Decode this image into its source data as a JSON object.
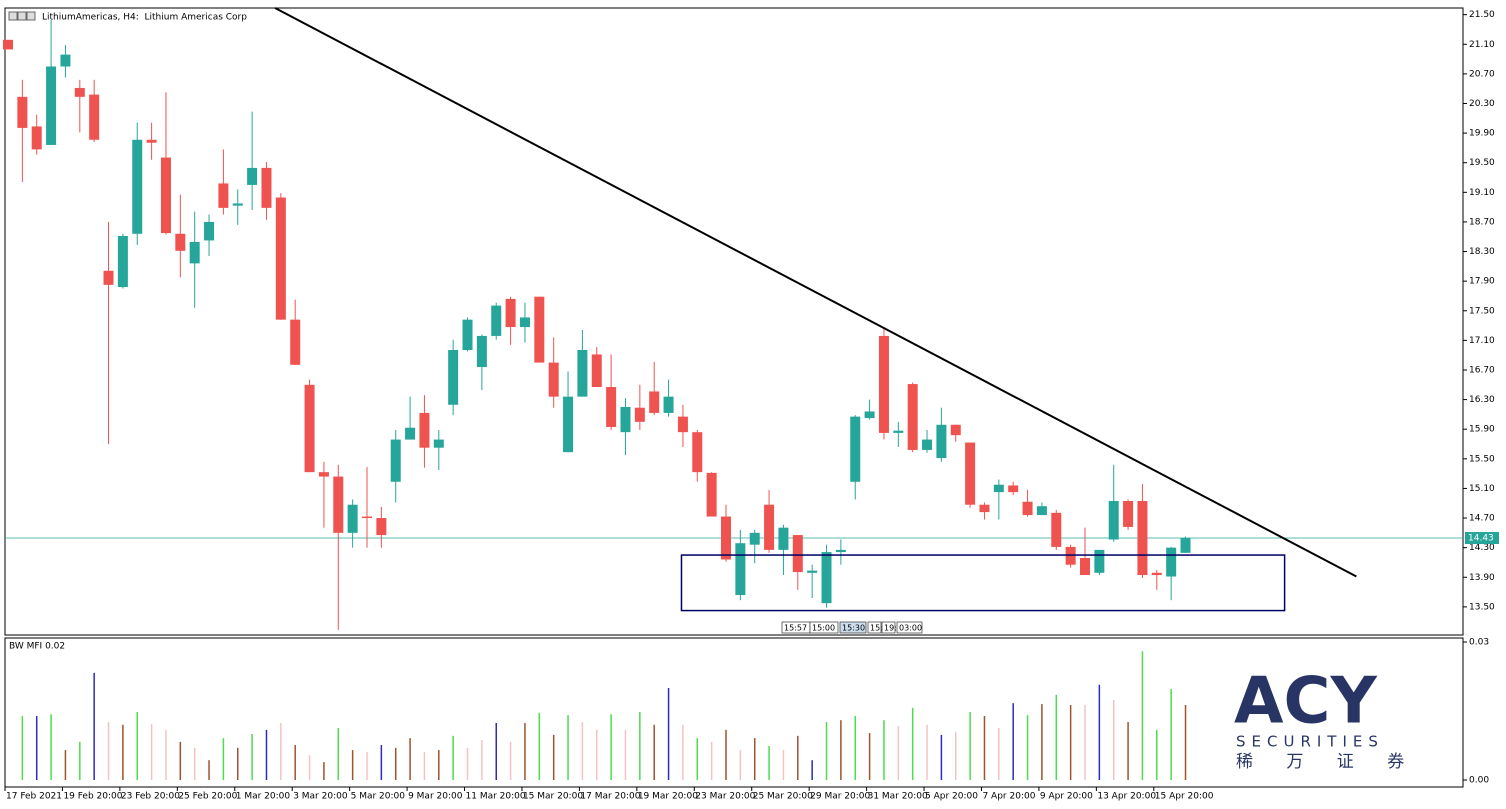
{
  "header": {
    "title": "LithiumAmericas, H4:  Lithium Americas Corp"
  },
  "chart_data": [
    {
      "type": "candlestick",
      "categories": [
        "17 Feb 2021",
        null,
        null,
        null,
        "19 Feb 20:00",
        null,
        null,
        null,
        "23 Feb 20:00",
        null,
        null,
        null,
        "25 Feb 20:00",
        null,
        null,
        null,
        "1 Mar 20:00",
        null,
        null,
        null,
        "3 Mar 20:00",
        null,
        null,
        null,
        "5 Mar 20:00",
        null,
        null,
        null,
        "9 Mar 20:00",
        null,
        null,
        null,
        "11 Mar 20:00",
        null,
        null,
        null,
        "15 Mar 20:00",
        null,
        null,
        null,
        "17 Mar 20:00",
        null,
        null,
        null,
        "19 Mar 20:00",
        null,
        null,
        null,
        "23 Mar 20:00",
        null,
        null,
        null,
        "25 Mar 20:00",
        null,
        null,
        null,
        "29 Mar 20:00",
        null,
        null,
        null,
        "31 Mar 20:00",
        null,
        null,
        null,
        "5 Apr 20:00",
        null,
        null,
        null,
        "7 Apr 20:00",
        null,
        null,
        null,
        "9 Apr 20:00",
        null,
        null,
        null,
        "13 Apr 20:00",
        null,
        null,
        null,
        "15 Apr 20:00",
        null,
        null
      ],
      "open": [
        21.16,
        20.39,
        19.99,
        19.74,
        20.8,
        20.51,
        20.42,
        18.04,
        17.82,
        18.54,
        19.81,
        19.57,
        18.54,
        18.14,
        18.45,
        19.22,
        18.92,
        19.2,
        19.43,
        19.03,
        17.38,
        16.5,
        15.32,
        15.26,
        14.5,
        14.72,
        14.7,
        15.19,
        15.76,
        16.12,
        15.65,
        16.23,
        16.97,
        16.74,
        17.16,
        17.66,
        17.28,
        17.69,
        16.8,
        15.59,
        16.34,
        16.91,
        16.47,
        15.86,
        16.19,
        16.41,
        16.12,
        16.07,
        15.86,
        15.31,
        14.72,
        13.66,
        14.34,
        14.88,
        14.27,
        14.47,
        13.96,
        13.55,
        14.24,
        15.19,
        16.05,
        17.16,
        15.85,
        16.51,
        15.62,
        15.51,
        15.96,
        15.72,
        14.88,
        15.05,
        15.14,
        14.92,
        14.74,
        14.77,
        14.31,
        14.16,
        13.96,
        14.41,
        14.93,
        14.93,
        13.96,
        13.91,
        14.23
      ],
      "high": [
        21.16,
        20.62,
        20.15,
        21.43,
        21.09,
        20.62,
        20.62,
        18.7,
        18.54,
        20.04,
        20.04,
        20.45,
        19.07,
        18.84,
        18.8,
        19.68,
        19.14,
        20.19,
        19.51,
        19.09,
        17.65,
        16.57,
        15.46,
        15.42,
        14.95,
        15.39,
        14.85,
        15.89,
        16.34,
        16.36,
        15.89,
        17.11,
        17.41,
        17.18,
        17.61,
        17.69,
        17.61,
        17.69,
        17.14,
        16.68,
        17.24,
        17.01,
        16.91,
        16.32,
        16.5,
        16.81,
        16.57,
        16.23,
        15.89,
        15.32,
        14.88,
        14.54,
        14.54,
        15.08,
        14.61,
        14.47,
        14.07,
        14.34,
        14.41,
        16.09,
        16.3,
        17.28,
        16.0,
        16.53,
        15.89,
        16.19,
        15.96,
        15.72,
        14.91,
        15.22,
        15.19,
        15.08,
        14.91,
        14.81,
        14.34,
        14.57,
        14.27,
        15.42,
        14.95,
        15.16,
        14.0,
        14.31,
        14.45
      ],
      "low": [
        21.03,
        19.24,
        19.61,
        19.74,
        20.65,
        19.91,
        19.78,
        15.7,
        17.8,
        18.39,
        19.54,
        18.53,
        17.95,
        17.54,
        18.24,
        18.8,
        18.66,
        18.86,
        18.73,
        17.38,
        16.77,
        15.32,
        14.57,
        13.19,
        14.3,
        14.3,
        14.3,
        14.91,
        15.76,
        15.38,
        15.35,
        16.09,
        16.95,
        16.43,
        17.11,
        17.04,
        17.07,
        16.8,
        16.19,
        15.59,
        16.34,
        16.47,
        15.89,
        15.55,
        15.89,
        16.09,
        16.07,
        15.66,
        15.19,
        14.72,
        14.11,
        13.59,
        14.09,
        14.23,
        13.93,
        13.73,
        13.62,
        13.49,
        14.07,
        14.95,
        16.03,
        15.76,
        15.66,
        15.59,
        15.58,
        15.46,
        15.73,
        14.84,
        14.68,
        14.68,
        15.01,
        14.72,
        14.74,
        14.27,
        14.03,
        13.93,
        13.93,
        14.38,
        14.54,
        13.89,
        13.73,
        13.59,
        14.23
      ],
      "close": [
        21.03,
        19.97,
        19.68,
        20.8,
        20.96,
        20.39,
        19.81,
        17.85,
        18.51,
        19.81,
        19.77,
        18.55,
        18.31,
        18.43,
        18.7,
        18.89,
        18.95,
        19.43,
        18.89,
        17.38,
        16.77,
        15.32,
        15.26,
        14.5,
        14.88,
        14.7,
        14.47,
        15.76,
        15.92,
        15.65,
        15.76,
        16.97,
        17.38,
        17.16,
        17.57,
        17.28,
        17.41,
        16.8,
        16.34,
        16.34,
        16.97,
        16.47,
        15.93,
        16.2,
        16.0,
        16.12,
        16.34,
        15.86,
        15.32,
        14.72,
        14.14,
        14.36,
        14.5,
        14.27,
        14.57,
        13.97,
        13.99,
        14.24,
        14.27,
        16.07,
        16.14,
        15.85,
        15.88,
        15.62,
        15.76,
        15.96,
        15.82,
        14.88,
        14.78,
        15.15,
        15.05,
        14.74,
        14.86,
        14.31,
        14.07,
        13.93,
        14.27,
        14.93,
        14.58,
        13.93,
        13.93,
        14.3,
        14.43
      ],
      "up_color": "#26a69a",
      "down_color": "#ef5350",
      "ylim": [
        13.12,
        21.59
      ],
      "yticks": [
        {
          "value": 21.5,
          "label": "21.50"
        },
        {
          "value": 21.1,
          "label": "21.10"
        },
        {
          "value": 20.7,
          "label": "20.70"
        },
        {
          "value": 20.3,
          "label": "20.30"
        },
        {
          "value": 19.9,
          "label": "19.90"
        },
        {
          "value": 19.5,
          "label": "19.50"
        },
        {
          "value": 19.1,
          "label": "19.10"
        },
        {
          "value": 18.7,
          "label": "18.70"
        },
        {
          "value": 18.3,
          "label": "18.30"
        },
        {
          "value": 17.9,
          "label": "17.90"
        },
        {
          "value": 17.5,
          "label": "17.50"
        },
        {
          "value": 17.1,
          "label": "17.10"
        },
        {
          "value": 16.7,
          "label": "16.70"
        },
        {
          "value": 16.3,
          "label": "16.30"
        },
        {
          "value": 15.9,
          "label": "15.90"
        },
        {
          "value": 15.5,
          "label": "15.50"
        },
        {
          "value": 15.1,
          "label": "15.10"
        },
        {
          "value": 14.7,
          "label": "14.70"
        },
        {
          "value": 14.3,
          "label": "14.30"
        },
        {
          "value": 13.9,
          "label": "13.90"
        },
        {
          "value": 13.5,
          "label": "13.50"
        }
      ],
      "last_price": 14.43,
      "last_price_color": "#26a69a",
      "trendline": {
        "x": [
          18.6,
          93.9
        ],
        "y": [
          21.59,
          13.91
        ],
        "color": "#000000"
      },
      "rectangle": {
        "x": [
          46.9,
          88.9
        ],
        "y": [
          14.2,
          13.45
        ],
        "color": "#000066"
      },
      "time_tags": [
        "15:57",
        "15:00",
        "15:30",
        "15:",
        "19:",
        "03:00"
      ]
    },
    {
      "type": "bar",
      "title": "BW MFI 0.02",
      "values": [
        null,
        0.0139,
        0.0139,
        0.0143,
        0.0065,
        0.0083,
        0.0233,
        0.0126,
        0.012,
        0.0148,
        0.0122,
        0.0109,
        0.0083,
        0.007,
        0.0043,
        0.0091,
        0.007,
        0.01,
        0.0109,
        0.0124,
        0.0076,
        0.0054,
        0.0039,
        0.0113,
        0.0065,
        0.0061,
        0.0076,
        0.007,
        0.0091,
        0.0061,
        0.0065,
        0.0096,
        0.007,
        0.0087,
        0.0124,
        0.0083,
        0.0124,
        0.0146,
        0.0098,
        0.0141,
        0.0126,
        0.0109,
        0.0143,
        0.0109,
        0.0148,
        0.012,
        0.02,
        0.012,
        0.0091,
        0.0083,
        0.0109,
        0.0065,
        0.0091,
        0.0074,
        0.0065,
        0.0096,
        0.0043,
        0.0126,
        0.013,
        0.0139,
        0.0102,
        0.013,
        0.0117,
        0.0157,
        0.012,
        0.0098,
        0.0104,
        0.0148,
        0.0139,
        0.0113,
        0.0167,
        0.0141,
        0.0165,
        0.0185,
        0.0163,
        0.0163,
        0.0207,
        0.0174,
        0.0126,
        0.028,
        0.0109,
        0.0198,
        0.0163
      ],
      "colors": [
        null,
        "#4ddc4d",
        "#2b2bbd",
        "#4ddc4d",
        "#a0522d",
        "#4ddc4d",
        "#2b2bbd",
        "#f4c2c2",
        "#a0522d",
        "#4ddc4d",
        "#f4c2c2",
        "#f4c2c2",
        "#a0522d",
        "#f4c2c2",
        "#a0522d",
        "#4ddc4d",
        "#a0522d",
        "#4ddc4d",
        "#2b2bbd",
        "#f4c2c2",
        "#a0522d",
        "#f4c2c2",
        "#a0522d",
        "#4ddc4d",
        "#a0522d",
        "#f4c2c2",
        "#2b2bbd",
        "#a0522d",
        "#a0522d",
        "#f4c2c2",
        "#a0522d",
        "#4ddc4d",
        "#f4c2c2",
        "#f4c2c2",
        "#2b2bbd",
        "#f4c2c2",
        "#a0522d",
        "#4ddc4d",
        "#a0522d",
        "#4ddc4d",
        "#f4c2c2",
        "#f4c2c2",
        "#4ddc4d",
        "#f4c2c2",
        "#4ddc4d",
        "#a0522d",
        "#2b2bbd",
        "#f4c2c2",
        "#4ddc4d",
        "#f4c2c2",
        "#a0522d",
        "#f4c2c2",
        "#a0522d",
        "#4ddc4d",
        "#f4c2c2",
        "#a0522d",
        "#2b2bbd",
        "#4ddc4d",
        "#a0522d",
        "#4ddc4d",
        "#a0522d",
        "#4ddc4d",
        "#f4c2c2",
        "#4ddc4d",
        "#f4c2c2",
        "#2b2bbd",
        "#f4c2c2",
        "#4ddc4d",
        "#a0522d",
        "#f4c2c2",
        "#2b2bbd",
        "#4ddc4d",
        "#a0522d",
        "#4ddc4d",
        "#a0522d",
        "#f4c2c2",
        "#2b2bbd",
        "#f4c2c2",
        "#a0522d",
        "#4ddc4d",
        "#4ddc4d",
        "#4ddc4d",
        "#a0522d"
      ],
      "ylim": [
        0,
        0.03
      ],
      "yticks": [
        0.03,
        {
          "value": 0,
          "label": "0.00"
        }
      ]
    }
  ],
  "watermark": {
    "brand": "ACY",
    "tagline": "SECURITIES",
    "chinese": "稀 万 证 券"
  }
}
